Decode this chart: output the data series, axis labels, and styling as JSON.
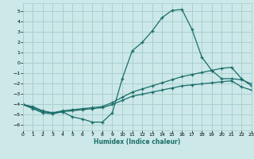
{
  "xlabel": "Humidex (Indice chaleur)",
  "ylabel": "",
  "bg_color": "#cce8e8",
  "grid_color": "#aacfcf",
  "line_color": "#1a6e6a",
  "x_values": [
    0,
    1,
    2,
    3,
    4,
    5,
    6,
    7,
    8,
    9,
    10,
    11,
    12,
    13,
    14,
    15,
    16,
    17,
    18,
    19,
    20,
    21,
    22,
    23
  ],
  "series1": [
    -4.0,
    -4.4,
    -4.8,
    -4.9,
    -4.7,
    -5.2,
    -5.4,
    -5.7,
    -5.7,
    -4.8,
    -1.5,
    1.2,
    2.0,
    3.1,
    4.4,
    5.1,
    5.2,
    3.3,
    0.6,
    -0.7,
    -1.5,
    -1.5,
    -1.6,
    -2.0
  ],
  "series2": [
    -4.0,
    -4.2,
    -4.6,
    -4.8,
    -4.6,
    -4.5,
    -4.4,
    -4.3,
    -4.2,
    -3.8,
    -3.3,
    -2.8,
    -2.5,
    -2.2,
    -1.9,
    -1.6,
    -1.3,
    -1.1,
    -0.9,
    -0.7,
    -0.5,
    -0.4,
    -1.5,
    -2.2
  ],
  "series3": [
    -4.0,
    -4.3,
    -4.7,
    -4.8,
    -4.7,
    -4.6,
    -4.5,
    -4.4,
    -4.3,
    -4.0,
    -3.6,
    -3.2,
    -3.0,
    -2.8,
    -2.6,
    -2.4,
    -2.2,
    -2.1,
    -2.0,
    -1.9,
    -1.8,
    -1.7,
    -2.3,
    -2.6
  ],
  "xlim": [
    0,
    23
  ],
  "ylim": [
    -6.5,
    5.8
  ],
  "yticks": [
    -6,
    -5,
    -4,
    -3,
    -2,
    -1,
    0,
    1,
    2,
    3,
    4,
    5
  ],
  "xticks": [
    0,
    1,
    2,
    3,
    4,
    5,
    6,
    7,
    8,
    9,
    10,
    11,
    12,
    13,
    14,
    15,
    16,
    17,
    18,
    19,
    20,
    21,
    22,
    23
  ]
}
